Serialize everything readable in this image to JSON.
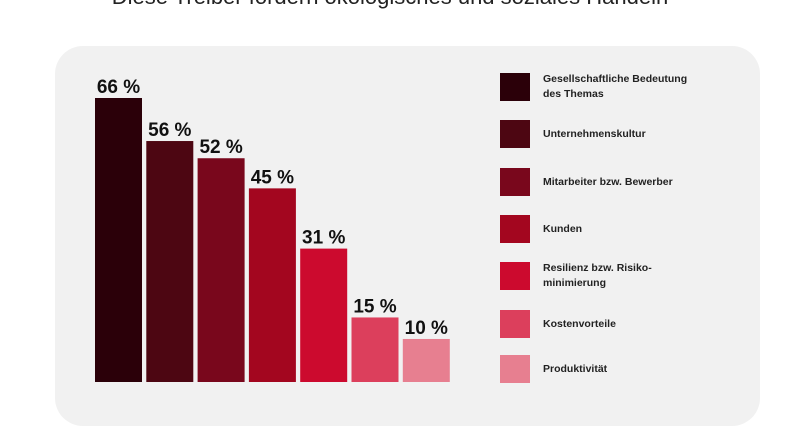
{
  "chart_data": {
    "type": "bar",
    "title": "Diese Treiber fördern ökologisches und soziales Handeln",
    "categories": [
      "Gesellschaftliche Bedeutung\ndes Themas",
      "Unternehmenskultur",
      "Mitarbeiter bzw. Bewerber",
      "Kunden",
      "Resilienz bzw. Risiko-\nminimierung",
      "Kostenvorteile",
      "Produktivität"
    ],
    "values": [
      66,
      56,
      52,
      45,
      31,
      15,
      10
    ],
    "value_labels": [
      "66 %",
      "56 %",
      "52 %",
      "45 %",
      "31 %",
      "15 %",
      "10 %"
    ],
    "colors": [
      "#2b0009",
      "#4d0612",
      "#79071c",
      "#a3061f",
      "#cc0a2e",
      "#dc3f5c",
      "#e77f90"
    ]
  }
}
